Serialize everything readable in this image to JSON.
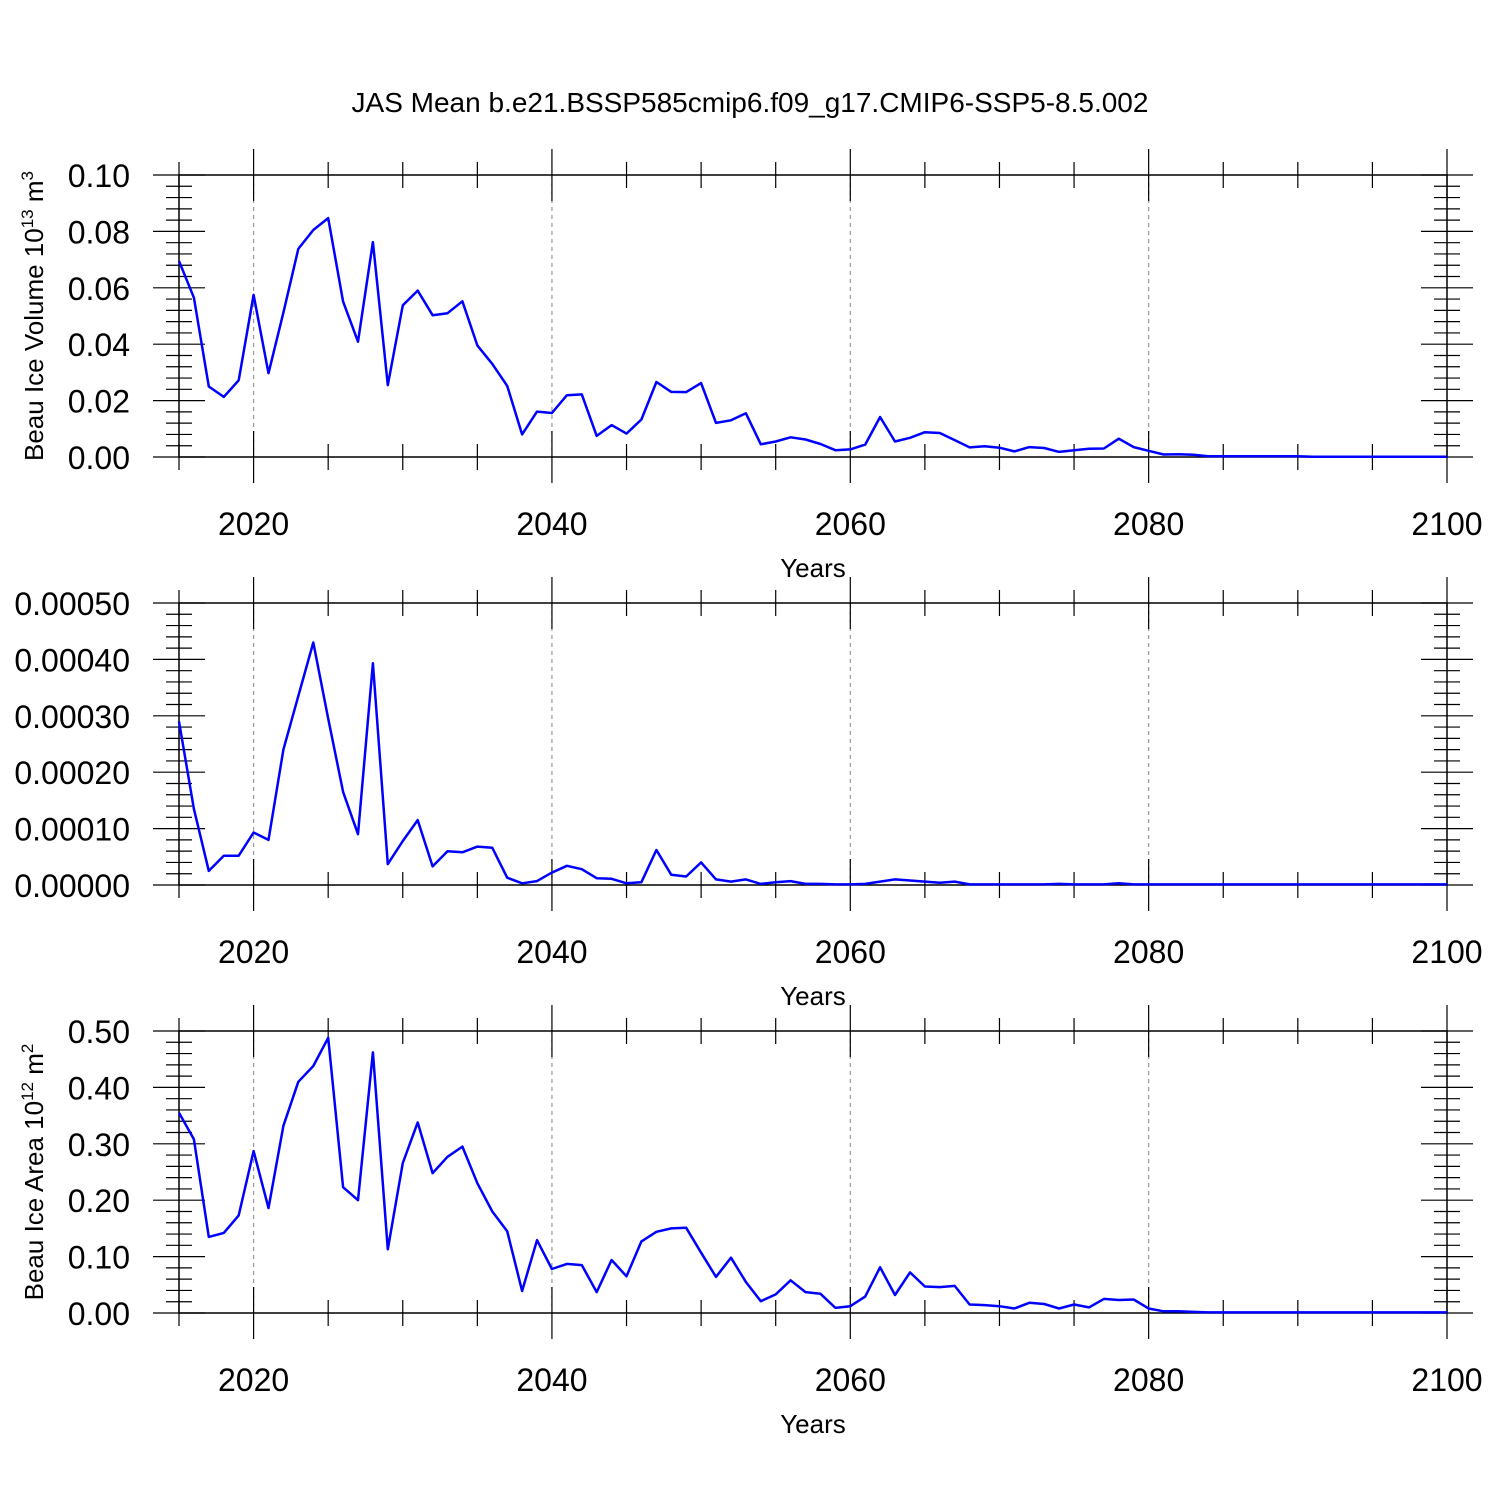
{
  "title": "JAS Mean b.e21.BSSP585cmip6.f09_g17.CMIP6-SSP5-8.5.002",
  "colors": {
    "series": "#0000ff",
    "axis": "#000000",
    "grid": "#999999",
    "background": "#ffffff"
  },
  "chart_data": [
    {
      "type": "line",
      "ylabel": {
        "text": "Beau Ice Volume 10",
        "exp": "13",
        "unit": " m",
        "unit_exp": "3"
      },
      "xlabel": "Years",
      "xlim": [
        2015,
        2100
      ],
      "ylim": [
        0,
        0.1
      ],
      "xticks": [
        2020,
        2040,
        2060,
        2080,
        2100
      ],
      "xtick_labels": [
        "2020",
        "2040",
        "2060",
        "2080",
        "2100"
      ],
      "yticks": [
        0,
        0.02,
        0.04,
        0.06,
        0.08,
        0.1
      ],
      "ytick_labels": [
        "0.00",
        "0.02",
        "0.04",
        "0.06",
        "0.08",
        "0.10"
      ],
      "grid": "vertical dashed at major x ticks",
      "series": [
        {
          "x": [
            2015,
            2016,
            2017,
            2018,
            2019,
            2020,
            2021,
            2022,
            2023,
            2024,
            2025,
            2026,
            2027,
            2028,
            2029,
            2030,
            2031,
            2032,
            2033,
            2034,
            2035,
            2036,
            2037,
            2038,
            2039,
            2040,
            2041,
            2042,
            2043,
            2044,
            2045,
            2046,
            2047,
            2048,
            2049,
            2050,
            2051,
            2052,
            2053,
            2054,
            2055,
            2056,
            2057,
            2058,
            2059,
            2060,
            2061,
            2062,
            2063,
            2064,
            2065,
            2066,
            2067,
            2068,
            2069,
            2070,
            2071,
            2072,
            2073,
            2074,
            2075,
            2076,
            2077,
            2078,
            2079,
            2080,
            2081,
            2082,
            2083,
            2084,
            2085,
            2086,
            2087,
            2088,
            2089,
            2090,
            2091,
            2092,
            2093,
            2094,
            2095,
            2096,
            2097,
            2098,
            2099,
            2100
          ],
          "values": [
            0.0695,
            0.0565,
            0.025,
            0.0213,
            0.0272,
            0.0575,
            0.0297,
            0.0512,
            0.0738,
            0.0805,
            0.0847,
            0.0551,
            0.0409,
            0.0762,
            0.0255,
            0.0538,
            0.059,
            0.0503,
            0.051,
            0.0552,
            0.0395,
            0.033,
            0.0252,
            0.008,
            0.0161,
            0.0156,
            0.0219,
            0.0222,
            0.0075,
            0.0113,
            0.0083,
            0.0133,
            0.0266,
            0.0231,
            0.023,
            0.0262,
            0.0121,
            0.013,
            0.0155,
            0.0045,
            0.0055,
            0.007,
            0.0062,
            0.0046,
            0.0024,
            0.0027,
            0.0044,
            0.0142,
            0.0055,
            0.0068,
            0.0088,
            0.0085,
            0.006,
            0.0034,
            0.0038,
            0.0033,
            0.002,
            0.0035,
            0.0032,
            0.0018,
            0.0024,
            0.0029,
            0.003,
            0.0065,
            0.0035,
            0.0022,
            0.0009,
            0.001,
            0.0008,
            0.0003,
            0.0003,
            0.0003,
            0.0003,
            0.0003,
            0.0003,
            0.0003,
            0.0001,
            0.0001,
            0.0001,
            0.0001,
            0.0001,
            0.0001,
            0.0001,
            0.0001,
            0.0001,
            0.0001
          ]
        }
      ]
    },
    {
      "type": "line",
      "ylabel": null,
      "xlabel": "Years",
      "xlim": [
        2015,
        2100
      ],
      "ylim": [
        0,
        0.0005
      ],
      "xticks": [
        2020,
        2040,
        2060,
        2080,
        2100
      ],
      "xtick_labels": [
        "2020",
        "2040",
        "2060",
        "2080",
        "2100"
      ],
      "yticks": [
        0,
        0.0001,
        0.0002,
        0.0003,
        0.0004,
        0.0005
      ],
      "ytick_labels": [
        "0.00000",
        "0.00010",
        "0.00020",
        "0.00030",
        "0.00040",
        "0.00050"
      ],
      "grid": "vertical dashed at major x ticks",
      "series": [
        {
          "x": [
            2015,
            2016,
            2017,
            2018,
            2019,
            2020,
            2021,
            2022,
            2023,
            2024,
            2025,
            2026,
            2027,
            2028,
            2029,
            2030,
            2031,
            2032,
            2033,
            2034,
            2035,
            2036,
            2037,
            2038,
            2039,
            2040,
            2041,
            2042,
            2043,
            2044,
            2045,
            2046,
            2047,
            2048,
            2049,
            2050,
            2051,
            2052,
            2053,
            2054,
            2055,
            2056,
            2057,
            2058,
            2059,
            2060,
            2061,
            2062,
            2063,
            2064,
            2065,
            2066,
            2067,
            2068,
            2069,
            2070,
            2071,
            2072,
            2073,
            2074,
            2075,
            2076,
            2077,
            2078,
            2079,
            2080,
            2081,
            2082,
            2083,
            2084,
            2085,
            2086,
            2087,
            2088,
            2089,
            2090,
            2091,
            2092,
            2093,
            2094,
            2095,
            2096,
            2097,
            2098,
            2099,
            2100
          ],
          "values": [
            0.00029,
            0.000135,
            2.5e-05,
            5.2e-05,
            5.2e-05,
            9.3e-05,
            8e-05,
            0.00024,
            0.000335,
            0.00043,
            0.000295,
            0.000165,
            9e-05,
            0.000393,
            3.7e-05,
            7.8e-05,
            0.000115,
            3.3e-05,
            6e-05,
            5.8e-05,
            6.8e-05,
            6.6e-05,
            1.3e-05,
            3e-06,
            7e-06,
            2.2e-05,
            3.4e-05,
            2.8e-05,
            1.2e-05,
            1.1e-05,
            3e-06,
            5e-06,
            6.2e-05,
            1.8e-05,
            1.5e-05,
            4e-05,
            1e-05,
            6e-06,
            1e-05,
            2e-06,
            5e-06,
            7e-06,
            2e-06,
            2e-06,
            1e-06,
            1e-06,
            2e-06,
            6e-06,
            1e-05,
            8e-06,
            6e-06,
            4e-06,
            6e-06,
            1e-06,
            1e-06,
            1e-06,
            1e-06,
            1e-06,
            1e-06,
            2e-06,
            1e-06,
            1e-06,
            1e-06,
            3e-06,
            1e-06,
            1e-06,
            1e-06,
            1e-06,
            1e-06,
            1e-06,
            1e-06,
            1e-06,
            1e-06,
            1e-06,
            1e-06,
            1e-06,
            1e-06,
            1e-06,
            1e-06,
            1e-06,
            1e-06,
            1e-06,
            1e-06,
            1e-06,
            1e-06,
            1e-06
          ]
        }
      ]
    },
    {
      "type": "line",
      "ylabel": {
        "text": "Beau Ice Area 10",
        "exp": "12",
        "unit": " m",
        "unit_exp": "2"
      },
      "xlabel": "Years",
      "xlim": [
        2015,
        2100
      ],
      "ylim": [
        0,
        0.5
      ],
      "xticks": [
        2020,
        2040,
        2060,
        2080,
        2100
      ],
      "xtick_labels": [
        "2020",
        "2040",
        "2060",
        "2080",
        "2100"
      ],
      "yticks": [
        0,
        0.1,
        0.2,
        0.3,
        0.4,
        0.5
      ],
      "ytick_labels": [
        "0.00",
        "0.10",
        "0.20",
        "0.30",
        "0.40",
        "0.50"
      ],
      "grid": "vertical dashed at major x ticks",
      "series": [
        {
          "x": [
            2015,
            2016,
            2017,
            2018,
            2019,
            2020,
            2021,
            2022,
            2023,
            2024,
            2025,
            2026,
            2027,
            2028,
            2029,
            2030,
            2031,
            2032,
            2033,
            2034,
            2035,
            2036,
            2037,
            2038,
            2039,
            2040,
            2041,
            2042,
            2043,
            2044,
            2045,
            2046,
            2047,
            2048,
            2049,
            2050,
            2051,
            2052,
            2053,
            2054,
            2055,
            2056,
            2057,
            2058,
            2059,
            2060,
            2061,
            2062,
            2063,
            2064,
            2065,
            2066,
            2067,
            2068,
            2069,
            2070,
            2071,
            2072,
            2073,
            2074,
            2075,
            2076,
            2077,
            2078,
            2079,
            2080,
            2081,
            2082,
            2083,
            2084,
            2085,
            2086,
            2087,
            2088,
            2089,
            2090,
            2091,
            2092,
            2093,
            2094,
            2095,
            2096,
            2097,
            2098,
            2099,
            2100
          ],
          "values": [
            0.355,
            0.308,
            0.135,
            0.142,
            0.173,
            0.287,
            0.186,
            0.332,
            0.41,
            0.438,
            0.488,
            0.223,
            0.2,
            0.462,
            0.113,
            0.266,
            0.338,
            0.248,
            0.277,
            0.295,
            0.23,
            0.18,
            0.145,
            0.039,
            0.129,
            0.078,
            0.087,
            0.085,
            0.037,
            0.094,
            0.065,
            0.127,
            0.144,
            0.15,
            0.151,
            0.107,
            0.064,
            0.098,
            0.055,
            0.021,
            0.033,
            0.058,
            0.037,
            0.034,
            0.009,
            0.012,
            0.029,
            0.081,
            0.032,
            0.072,
            0.047,
            0.046,
            0.048,
            0.015,
            0.014,
            0.012,
            0.008,
            0.018,
            0.016,
            0.008,
            0.015,
            0.01,
            0.025,
            0.023,
            0.024,
            0.008,
            0.003,
            0.003,
            0.002,
            0.001,
            0.001,
            0.001,
            0.001,
            0.001,
            0.001,
            0.001,
            0.001,
            0.001,
            0.001,
            0.001,
            0.001,
            0.001,
            0.001,
            0.001,
            0.001,
            0.001
          ]
        }
      ]
    }
  ]
}
